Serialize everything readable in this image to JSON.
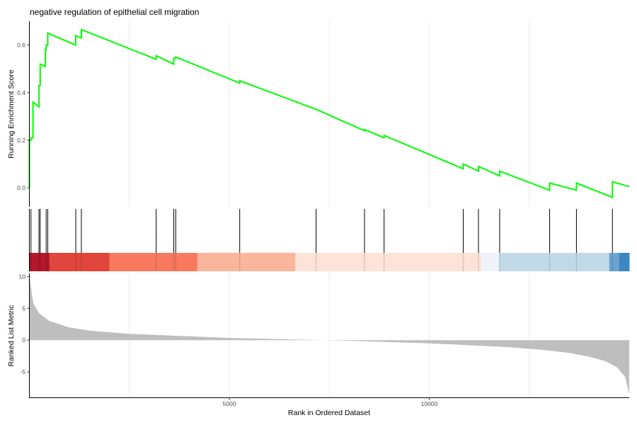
{
  "chart_data": {
    "type": "line",
    "title": "negative regulation of epithelial cell migration",
    "xlabel": "Rank in Ordered Dataset",
    "x_range": [
      0,
      15000
    ],
    "x_ticks": [
      5000,
      10000
    ],
    "es_panel": {
      "ylabel": "Running Enrichment Score",
      "ylim": [
        -0.08,
        0.7
      ],
      "y_ticks": [
        0.0,
        0.2,
        0.4,
        0.6
      ],
      "grid": "vertical",
      "series": [
        {
          "color": "#00ff00",
          "x": [
            0,
            0,
            40,
            40,
            90,
            90,
            240,
            240,
            270,
            270,
            400,
            400,
            420,
            420,
            460,
            460,
            1160,
            1160,
            1300,
            1300,
            3170,
            3170,
            3610,
            3610,
            3660,
            3660,
            5260,
            5260,
            7170,
            7170,
            8380,
            8380,
            8870,
            8870,
            10850,
            10850,
            11230,
            11230,
            11760,
            11760,
            13010,
            13010,
            13680,
            13680,
            14580,
            14580,
            15000
          ],
          "y": [
            0.0,
            0.2,
            0.2,
            0.21,
            0.21,
            0.36,
            0.34,
            0.43,
            0.43,
            0.52,
            0.51,
            0.58,
            0.58,
            0.6,
            0.6,
            0.65,
            0.6,
            0.64,
            0.63,
            0.665,
            0.54,
            0.555,
            0.52,
            0.545,
            0.545,
            0.55,
            0.44,
            0.45,
            0.33,
            0.33,
            0.24,
            0.245,
            0.21,
            0.22,
            0.08,
            0.1,
            0.07,
            0.09,
            0.05,
            0.07,
            -0.01,
            0.02,
            -0.01,
            0.02,
            -0.04,
            0.025,
            0.005
          ]
        }
      ]
    },
    "gene_hits": [
      0,
      40,
      240,
      270,
      420,
      460,
      1160,
      1300,
      3170,
      3610,
      3660,
      5260,
      7170,
      8380,
      8870,
      10850,
      11230,
      11760,
      13010,
      13680,
      14580
    ],
    "rank_colorbar": {
      "segments": [
        {
          "from": 0,
          "to": 500,
          "color": "#b2182b"
        },
        {
          "from": 500,
          "to": 2000,
          "color": "#e0463c"
        },
        {
          "from": 2000,
          "to": 4200,
          "color": "#f77a5e"
        },
        {
          "from": 4200,
          "to": 6650,
          "color": "#fbb59a"
        },
        {
          "from": 6650,
          "to": 11300,
          "color": "#fde3d8"
        },
        {
          "from": 11300,
          "to": 11750,
          "color": "#eef3fa"
        },
        {
          "from": 11750,
          "to": 14500,
          "color": "#c2dae8"
        },
        {
          "from": 14500,
          "to": 14750,
          "color": "#6aa4cf"
        },
        {
          "from": 14750,
          "to": 15000,
          "color": "#3b87c2"
        }
      ]
    },
    "metric_panel": {
      "ylabel": "Ranked List Metric",
      "ylim": [
        -9,
        10.5
      ],
      "y_ticks": [
        10,
        5,
        0,
        -5
      ],
      "fill_color": "#bebebe",
      "x": [
        0,
        100,
        250,
        500,
        1000,
        1500,
        2500,
        4000,
        5000,
        6000,
        7000,
        8000,
        9000,
        10000,
        11000,
        12000,
        12800,
        13500,
        14000,
        14400,
        14700,
        14900,
        15000
      ],
      "y": [
        10.2,
        5.8,
        4.2,
        3.0,
        2.0,
        1.5,
        1.0,
        0.6,
        0.35,
        0.2,
        0.05,
        -0.1,
        -0.3,
        -0.5,
        -0.8,
        -1.1,
        -1.5,
        -2.0,
        -2.6,
        -3.3,
        -4.3,
        -5.8,
        -8.5
      ]
    }
  }
}
